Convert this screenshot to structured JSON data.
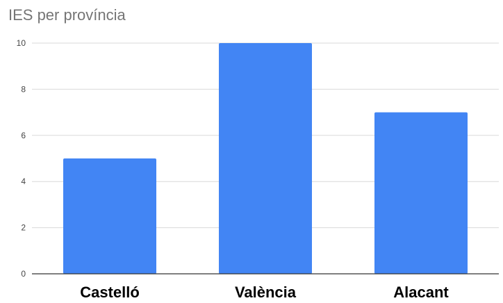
{
  "chart_data": {
    "type": "bar",
    "title": "IES per província",
    "xlabel": "",
    "ylabel": "",
    "categories": [
      "Castelló",
      "València",
      "Alacant"
    ],
    "values": [
      5,
      10,
      7
    ],
    "ylim": [
      0,
      10
    ],
    "yticks": [
      "0",
      "2",
      "4",
      "6",
      "8",
      "10"
    ],
    "grid": true,
    "legend": "none",
    "bar_color": "#4285f4"
  }
}
